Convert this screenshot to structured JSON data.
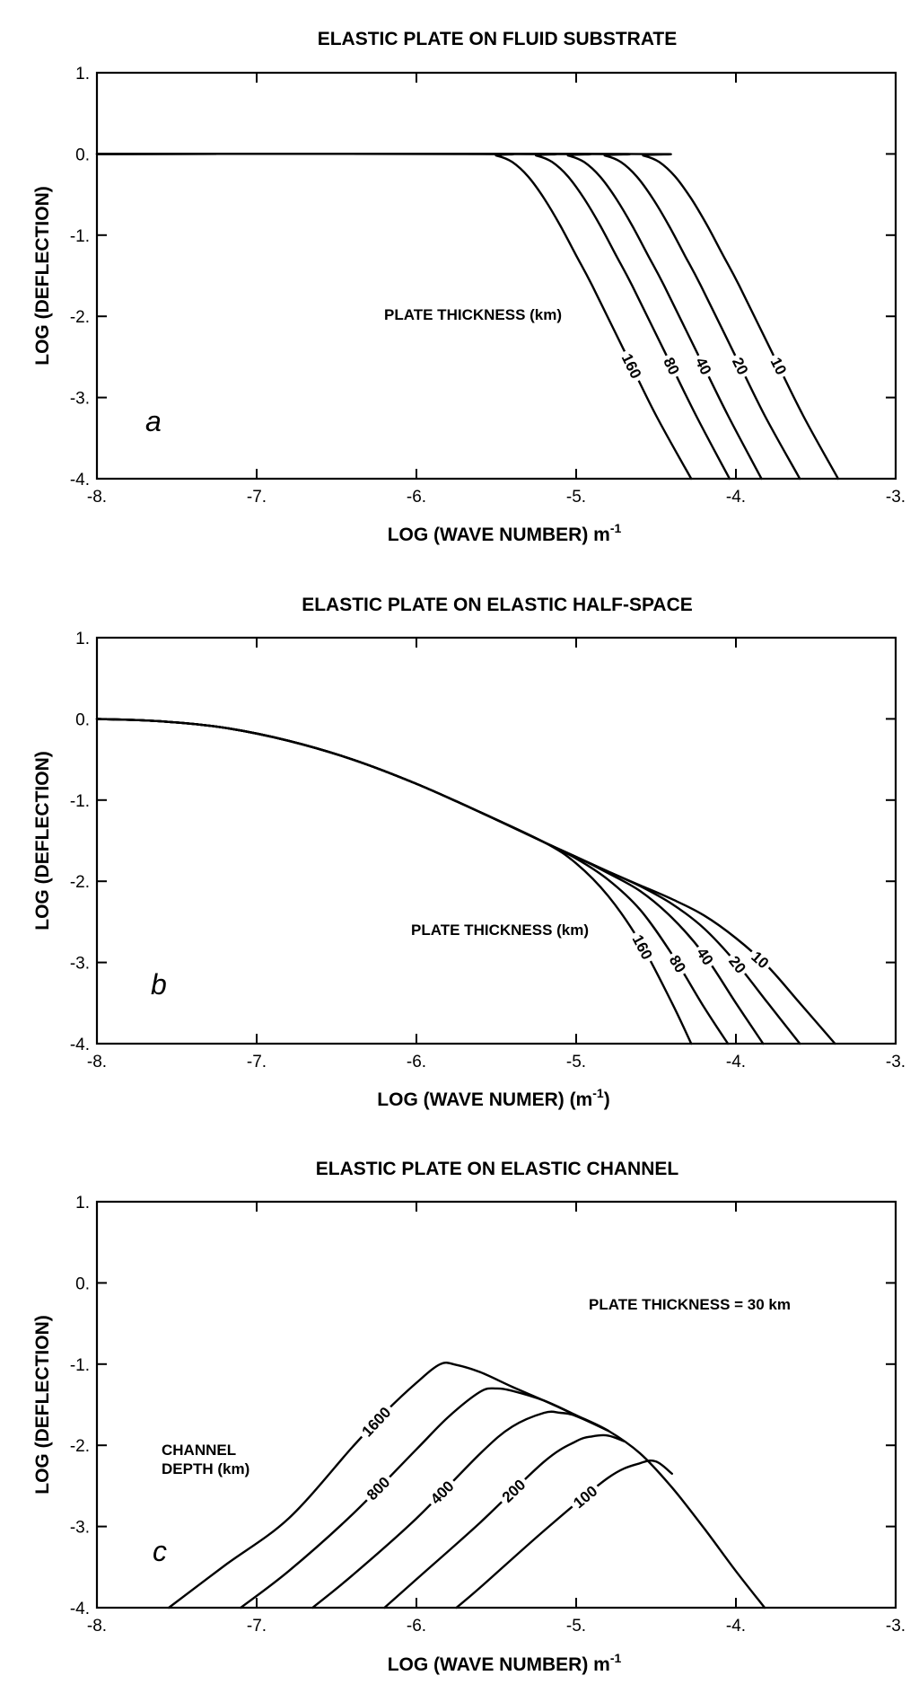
{
  "chart_data": [
    {
      "type": "line",
      "panel_letter": "a",
      "title": "ELASTIC PLATE ON FLUID SUBSTRATE",
      "xlabel": "LOG (WAVE NUMBER) m",
      "xlabel_sup": "-1",
      "xlabel_suffix": "",
      "ylabel": "LOG (DEFLECTION)",
      "xlim": [
        -8,
        -3
      ],
      "ylim": [
        -4,
        1
      ],
      "x_ticks": [
        -8,
        -7,
        -6,
        -5,
        -4,
        -3
      ],
      "x_tick_labels": [
        "-8.",
        "-7.",
        "-6.",
        "-5.",
        "-4.",
        "-3."
      ],
      "y_ticks": [
        1,
        0,
        -1,
        -2,
        -3,
        -4
      ],
      "y_tick_labels": [
        "1.",
        "0.",
        "-1.",
        "-2.",
        "-3.",
        "-4."
      ],
      "grid": false,
      "annotations": [
        "PLATE THICKNESS (km)"
      ],
      "series": [
        {
          "name": "160",
          "x": [
            -8,
            -5.6,
            -5.5,
            -5.4,
            -5.3,
            -5.2,
            -5.1,
            -5.0,
            -4.9,
            -4.7,
            -4.5,
            -4.28
          ],
          "y": [
            0,
            0,
            -0.02,
            -0.1,
            -0.28,
            -0.55,
            -0.88,
            -1.25,
            -1.62,
            -2.42,
            -3.22,
            -4.0
          ]
        },
        {
          "name": "80",
          "x": [
            -8,
            -5.35,
            -5.25,
            -5.15,
            -5.05,
            -4.95,
            -4.85,
            -4.75,
            -4.65,
            -4.45,
            -4.25,
            -4.04
          ],
          "y": [
            0,
            0,
            -0.02,
            -0.1,
            -0.28,
            -0.55,
            -0.88,
            -1.25,
            -1.62,
            -2.42,
            -3.22,
            -4.0
          ]
        },
        {
          "name": "40",
          "x": [
            -8,
            -5.15,
            -5.05,
            -4.95,
            -4.85,
            -4.75,
            -4.65,
            -4.55,
            -4.45,
            -4.25,
            -4.05,
            -3.84
          ],
          "y": [
            0,
            0,
            -0.02,
            -0.1,
            -0.28,
            -0.55,
            -0.88,
            -1.25,
            -1.62,
            -2.42,
            -3.22,
            -4.0
          ]
        },
        {
          "name": "20",
          "x": [
            -8,
            -4.92,
            -4.82,
            -4.72,
            -4.62,
            -4.52,
            -4.42,
            -4.32,
            -4.22,
            -4.02,
            -3.82,
            -3.6
          ],
          "y": [
            0,
            0,
            -0.02,
            -0.1,
            -0.28,
            -0.55,
            -0.88,
            -1.25,
            -1.62,
            -2.42,
            -3.22,
            -4.0
          ]
        },
        {
          "name": "10",
          "x": [
            -8,
            -4.68,
            -4.58,
            -4.48,
            -4.38,
            -4.28,
            -4.18,
            -4.08,
            -3.98,
            -3.78,
            -3.58,
            -3.36
          ],
          "y": [
            0,
            0,
            -0.02,
            -0.1,
            -0.28,
            -0.55,
            -0.88,
            -1.25,
            -1.62,
            -2.42,
            -3.22,
            -4.0
          ]
        }
      ]
    },
    {
      "type": "line",
      "panel_letter": "b",
      "title": "ELASTIC PLATE ON ELASTIC HALF-SPACE",
      "xlabel": "LOG (WAVE NUMER) (m",
      "xlabel_sup": "-1",
      "xlabel_suffix": ")",
      "ylabel": "LOG (DEFLECTION)",
      "xlim": [
        -8,
        -3
      ],
      "ylim": [
        -4,
        1
      ],
      "x_ticks": [
        -8,
        -7,
        -6,
        -5,
        -4,
        -3
      ],
      "x_tick_labels": [
        "-8.",
        "-7.",
        "-6.",
        "-5.",
        "-4.",
        "-3."
      ],
      "y_ticks": [
        1,
        0,
        -1,
        -2,
        -3,
        -4
      ],
      "y_tick_labels": [
        "1.",
        "0.",
        "-1.",
        "-2.",
        "-3.",
        "-4."
      ],
      "grid": false,
      "annotations": [
        "PLATE THICKNESS (km)"
      ],
      "series": [
        {
          "name": "160",
          "x": [
            -8,
            -7.6,
            -7.2,
            -6.8,
            -6.4,
            -6.0,
            -5.6,
            -5.2,
            -5.0,
            -4.8,
            -4.6,
            -4.4,
            -4.28
          ],
          "y": [
            0,
            -0.03,
            -0.11,
            -0.27,
            -0.5,
            -0.8,
            -1.15,
            -1.52,
            -1.78,
            -2.18,
            -2.75,
            -3.5,
            -4.0
          ]
        },
        {
          "name": "80",
          "x": [
            -8,
            -7.6,
            -7.2,
            -6.8,
            -6.4,
            -6.0,
            -5.6,
            -5.2,
            -5.0,
            -4.8,
            -4.6,
            -4.4,
            -4.2,
            -4.05
          ],
          "y": [
            0,
            -0.03,
            -0.11,
            -0.27,
            -0.5,
            -0.8,
            -1.15,
            -1.52,
            -1.72,
            -1.98,
            -2.35,
            -2.9,
            -3.55,
            -4.0
          ]
        },
        {
          "name": "40",
          "x": [
            -8,
            -7.6,
            -7.2,
            -6.8,
            -6.4,
            -6.0,
            -5.6,
            -5.2,
            -5.0,
            -4.8,
            -4.6,
            -4.4,
            -4.2,
            -4.0,
            -3.83
          ],
          "y": [
            0,
            -0.03,
            -0.11,
            -0.27,
            -0.5,
            -0.8,
            -1.15,
            -1.52,
            -1.7,
            -1.9,
            -2.12,
            -2.45,
            -2.9,
            -3.5,
            -4.0
          ]
        },
        {
          "name": "20",
          "x": [
            -8,
            -7.6,
            -7.2,
            -6.8,
            -6.4,
            -6.0,
            -5.6,
            -5.2,
            -5.0,
            -4.8,
            -4.6,
            -4.4,
            -4.2,
            -4.0,
            -3.8,
            -3.6
          ],
          "y": [
            0,
            -0.03,
            -0.11,
            -0.27,
            -0.5,
            -0.8,
            -1.15,
            -1.52,
            -1.7,
            -1.88,
            -2.06,
            -2.28,
            -2.58,
            -3.0,
            -3.5,
            -4.0
          ]
        },
        {
          "name": "10",
          "x": [
            -8,
            -7.6,
            -7.2,
            -6.8,
            -6.4,
            -6.0,
            -5.6,
            -5.2,
            -5.0,
            -4.8,
            -4.6,
            -4.4,
            -4.2,
            -4.0,
            -3.8,
            -3.6,
            -3.38
          ],
          "y": [
            0,
            -0.03,
            -0.11,
            -0.27,
            -0.5,
            -0.8,
            -1.15,
            -1.52,
            -1.7,
            -1.88,
            -2.05,
            -2.22,
            -2.42,
            -2.7,
            -3.05,
            -3.5,
            -4.0
          ]
        }
      ]
    },
    {
      "type": "line",
      "panel_letter": "c",
      "title": "ELASTIC PLATE ON ELASTIC CHANNEL",
      "xlabel": "LOG (WAVE NUMBER) m",
      "xlabel_sup": "-1",
      "xlabel_suffix": "",
      "ylabel": "LOG (DEFLECTION)",
      "xlim": [
        -8,
        -3
      ],
      "ylim": [
        -4,
        1
      ],
      "x_ticks": [
        -8,
        -7,
        -6,
        -5,
        -4,
        -3
      ],
      "x_tick_labels": [
        "-8.",
        "-7.",
        "-6.",
        "-5.",
        "-4.",
        "-3."
      ],
      "y_ticks": [
        1,
        0,
        -1,
        -2,
        -3,
        -4
      ],
      "y_tick_labels": [
        "1.",
        "0.",
        "-1.",
        "-2.",
        "-3.",
        "-4."
      ],
      "grid": false,
      "annotations": [
        "PLATE THICKNESS = 30 km",
        "CHANNEL",
        "DEPTH (km)"
      ],
      "series": [
        {
          "name": "1600",
          "x": [
            -7.55,
            -7.2,
            -6.8,
            -6.4,
            -6.2,
            -6.0,
            -5.85,
            -5.75,
            -5.6,
            -5.4,
            -5.2,
            -5.0,
            -4.8,
            -4.6,
            -4.4,
            -4.2,
            -4.0,
            -3.82
          ],
          "y": [
            -4.0,
            -3.48,
            -2.9,
            -2.02,
            -1.6,
            -1.23,
            -1.0,
            -1.01,
            -1.1,
            -1.28,
            -1.45,
            -1.63,
            -1.82,
            -2.1,
            -2.52,
            -3.02,
            -3.55,
            -4.0
          ]
        },
        {
          "name": "800",
          "x": [
            -7.1,
            -6.8,
            -6.4,
            -6.0,
            -5.8,
            -5.6,
            -5.5,
            -5.4,
            -5.2,
            -5.0,
            -4.8
          ],
          "y": [
            -4.0,
            -3.55,
            -2.85,
            -2.05,
            -1.65,
            -1.34,
            -1.3,
            -1.33,
            -1.45,
            -1.63,
            -1.82
          ]
        },
        {
          "name": "400",
          "x": [
            -6.65,
            -6.4,
            -6.0,
            -5.6,
            -5.4,
            -5.2,
            -5.1,
            -5.0,
            -4.8
          ],
          "y": [
            -4.0,
            -3.6,
            -2.9,
            -2.1,
            -1.77,
            -1.6,
            -1.6,
            -1.64,
            -1.82
          ]
        },
        {
          "name": "200",
          "x": [
            -6.2,
            -6.0,
            -5.6,
            -5.2,
            -5.0,
            -4.9,
            -4.8,
            -4.7
          ],
          "y": [
            -4.0,
            -3.65,
            -2.95,
            -2.2,
            -1.95,
            -1.89,
            -1.88,
            -1.95
          ]
        },
        {
          "name": "100",
          "x": [
            -5.75,
            -5.6,
            -5.2,
            -4.8,
            -4.6,
            -4.5,
            -4.4
          ],
          "y": [
            -4.0,
            -3.75,
            -3.05,
            -2.4,
            -2.22,
            -2.2,
            -2.35
          ]
        }
      ]
    }
  ]
}
